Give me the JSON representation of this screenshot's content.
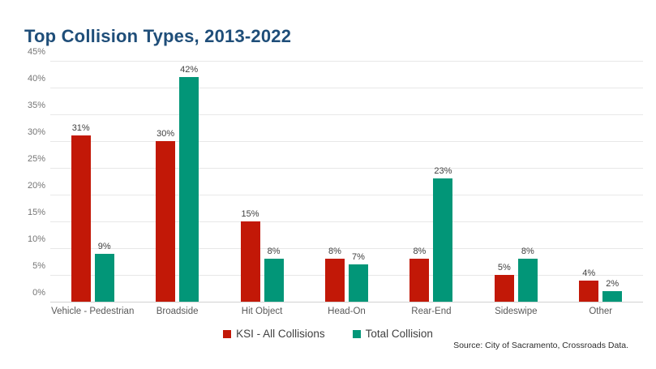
{
  "title": "Top Collision Types, 2013-2022",
  "source": "Source: City of Sacramento, Crossroads Data.",
  "colors": {
    "title": "#1f4e79",
    "ksi_red": "#c21807",
    "total_teal": "#029678",
    "gridline": "#e8e8e8",
    "axis_text": "#757575"
  },
  "chart_data": {
    "type": "bar",
    "title": "Top Collision Types, 2013-2022",
    "categories": [
      "Vehicle - Pedestrian",
      "Broadside",
      "Hit Object",
      "Head-On",
      "Rear-End",
      "Sideswipe",
      "Other"
    ],
    "series": [
      {
        "name": "KSI - All Collisions",
        "color": "#c21807",
        "values": [
          31,
          30,
          15,
          8,
          8,
          5,
          4
        ]
      },
      {
        "name": "Total Collision",
        "color": "#029678",
        "values": [
          9,
          42,
          8,
          7,
          23,
          8,
          2
        ]
      }
    ],
    "data_labels": [
      "31%",
      "9%",
      "30%",
      "42%",
      "15%",
      "8%",
      "8%",
      "7%",
      "8%",
      "23%",
      "5%",
      "8%",
      "4%",
      "2%"
    ],
    "xlabel": "",
    "ylabel": "",
    "ylim": [
      0,
      45
    ],
    "ytick_step": 5,
    "yticks": [
      "0%",
      "5%",
      "10%",
      "15%",
      "20%",
      "25%",
      "30%",
      "35%",
      "40%",
      "45%"
    ],
    "unit": "%",
    "grid": "horizontal",
    "legend_position": "bottom"
  }
}
